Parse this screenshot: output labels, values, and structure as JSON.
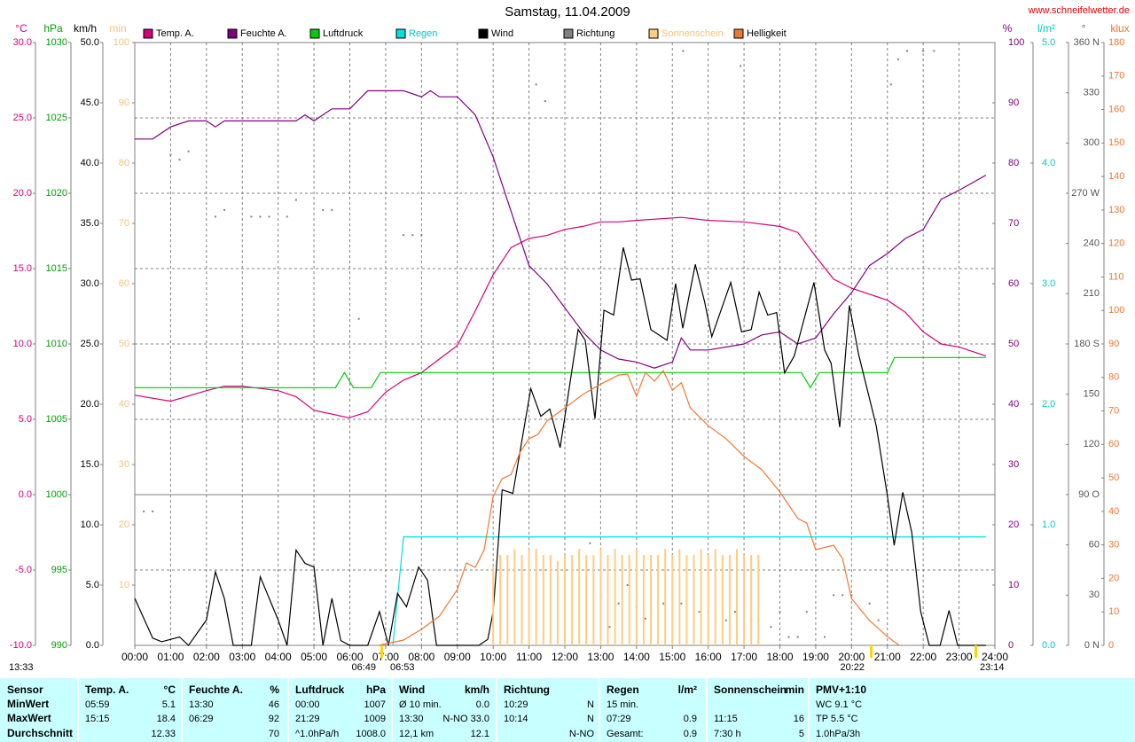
{
  "chart_data": {
    "type": "line",
    "title": "Samstag, 11.04.2009",
    "source": "www.schneifelwetter.de",
    "grid": true,
    "xlim": [
      0,
      24
    ],
    "xticks": [
      {
        "value": 0,
        "label": "00:00"
      },
      {
        "value": 1,
        "label": "01:00"
      },
      {
        "value": 2,
        "label": "02:00"
      },
      {
        "value": 3,
        "label": "03:00"
      },
      {
        "value": 4,
        "label": "04:00"
      },
      {
        "value": 5,
        "label": "05:00"
      },
      {
        "value": 6,
        "label": "06:00"
      },
      {
        "value": 7,
        "label": "07:00"
      },
      {
        "value": 8,
        "label": "08:00"
      },
      {
        "value": 9,
        "label": "09:00"
      },
      {
        "value": 10,
        "label": "10:00"
      },
      {
        "value": 11,
        "label": "11:00"
      },
      {
        "value": 12,
        "label": "12:00"
      },
      {
        "value": 13,
        "label": "13:00"
      },
      {
        "value": 14,
        "label": "14:00"
      },
      {
        "value": 15,
        "label": "15:00"
      },
      {
        "value": 16,
        "label": "16:00"
      },
      {
        "value": 17,
        "label": "17:00"
      },
      {
        "value": 18,
        "label": "18:00"
      },
      {
        "value": 19,
        "label": "19:00"
      },
      {
        "value": 20,
        "label": "20:00"
      },
      {
        "value": 21,
        "label": "21:00"
      },
      {
        "value": 22,
        "label": "22:00"
      },
      {
        "value": 23,
        "label": "23:00"
      },
      {
        "value": 24,
        "label": "24:00"
      }
    ],
    "axes": [
      {
        "label": "°C",
        "color": "#d4007a",
        "ylim": [
          -10,
          30
        ],
        "yticks": [
          {
            "value": -10,
            "label": "-10.0"
          },
          {
            "value": -5,
            "label": "-5.0"
          },
          {
            "value": 0,
            "label": "0.0"
          },
          {
            "value": 5,
            "label": "5.0"
          },
          {
            "value": 10,
            "label": "10.0"
          },
          {
            "value": 15,
            "label": "15.0"
          },
          {
            "value": 20,
            "label": "20.0"
          },
          {
            "value": 25,
            "label": "25.0"
          },
          {
            "value": 30,
            "label": "30.0"
          }
        ]
      },
      {
        "label": "hPa",
        "color": "#00a000",
        "ylim": [
          990,
          1030
        ],
        "yticks": [
          990,
          995,
          1000,
          1005,
          1010,
          1015,
          1020,
          1025,
          1030
        ]
      },
      {
        "label": "km/h",
        "color": "#000000",
        "ylim": [
          0,
          50
        ],
        "yticks": [
          {
            "value": 0,
            "label": "0.0"
          },
          {
            "value": 5,
            "label": "5.0"
          },
          {
            "value": 10,
            "label": "10.0"
          },
          {
            "value": 15,
            "label": "15.0"
          },
          {
            "value": 20,
            "label": "20.0"
          },
          {
            "value": 25,
            "label": "25.0"
          },
          {
            "value": 30,
            "label": "30.0"
          },
          {
            "value": 35,
            "label": "35.0"
          },
          {
            "value": 40,
            "label": "40.0"
          },
          {
            "value": 45,
            "label": "45.0"
          },
          {
            "value": 50,
            "label": "50.0"
          }
        ]
      },
      {
        "label": "min",
        "color": "#f5c27a",
        "ylim": [
          0,
          100
        ],
        "yticks": [
          10,
          20,
          30,
          40,
          50,
          60,
          70,
          80,
          90,
          100
        ]
      },
      {
        "label": "%",
        "color": "#800080",
        "ylim": [
          0,
          100
        ],
        "yticks": [
          0,
          10,
          20,
          30,
          40,
          50,
          60,
          70,
          80,
          90,
          100
        ]
      },
      {
        "label": "l/m²",
        "color": "#00c8c8",
        "ylim": [
          0,
          5
        ],
        "yticks": [
          {
            "value": 0,
            "label": "0.0"
          },
          {
            "value": 1,
            "label": "1.0"
          },
          {
            "value": 2,
            "label": "2.0"
          },
          {
            "value": 3,
            "label": "3.0"
          },
          {
            "value": 4,
            "label": "4.0"
          },
          {
            "value": 5,
            "label": "5.0"
          }
        ]
      },
      {
        "label": "°",
        "color": "#555555",
        "ylim": [
          0,
          360
        ],
        "yticks": [
          {
            "value": 0,
            "label": "0  N"
          },
          30,
          60,
          {
            "value": 90,
            "label": "90 O"
          },
          120,
          150,
          {
            "value": 180,
            "label": "180 S"
          },
          210,
          240,
          {
            "value": 270,
            "label": "270 W"
          },
          300,
          330,
          {
            "value": 360,
            "label": "360 N"
          }
        ]
      },
      {
        "label": "klux",
        "color": "#f07830",
        "ylim": [
          0,
          180
        ],
        "yticks": [
          0,
          10,
          20,
          30,
          40,
          50,
          60,
          70,
          80,
          90,
          100,
          110,
          120,
          130,
          140,
          150,
          160,
          170,
          180
        ]
      }
    ],
    "series": [
      {
        "name": "Temp. A.",
        "color": "#d4007a",
        "axis": 0,
        "x": [
          0,
          1,
          2,
          2.5,
          3,
          4,
          4.5,
          5,
          5.98,
          6.5,
          7,
          7.5,
          8,
          8.5,
          9,
          9.5,
          10,
          10.5,
          11,
          11.5,
          12,
          12.5,
          13,
          13.5,
          14,
          15.25,
          16,
          17,
          18,
          18.5,
          19,
          19.5,
          20,
          21,
          21.5,
          22,
          22.5,
          23,
          23.75
        ],
        "values": [
          6.6,
          6.2,
          6.9,
          7.2,
          7.2,
          6.9,
          6.5,
          5.6,
          5.1,
          5.5,
          6.8,
          7.6,
          8.1,
          9.0,
          9.9,
          12.2,
          14.6,
          16.4,
          17.0,
          17.2,
          17.6,
          17.8,
          18.1,
          18.1,
          18.2,
          18.4,
          18.2,
          18.1,
          17.8,
          17.4,
          15.8,
          14.3,
          13.7,
          12.9,
          12.1,
          10.8,
          10.0,
          9.8,
          9.2
        ]
      },
      {
        "name": "Feuchte A.",
        "color": "#800080",
        "axis": 4,
        "x": [
          0,
          0.5,
          1,
          1.5,
          2,
          2.25,
          2.5,
          3,
          4,
          4.5,
          4.75,
          5,
          5.5,
          6,
          6.5,
          7,
          7.5,
          8,
          8.25,
          8.5,
          9,
          9.5,
          10,
          10.5,
          11,
          11.5,
          12,
          12.5,
          13,
          13.5,
          14,
          14.5,
          15,
          15.25,
          15.5,
          16,
          17,
          17.5,
          18,
          18.5,
          19,
          19.5,
          20,
          20.5,
          21,
          21.5,
          22,
          22.5,
          23,
          23.75
        ],
        "values": [
          84,
          84,
          86,
          87,
          87,
          86,
          87,
          87,
          87,
          87,
          88,
          87,
          89,
          89,
          92,
          92,
          92,
          91,
          92,
          91,
          91,
          88,
          81,
          72,
          63,
          60,
          56,
          52,
          49,
          47.5,
          47,
          46,
          47,
          51,
          49,
          49,
          50,
          51.5,
          52,
          50,
          51,
          55,
          58.5,
          63,
          65,
          67.5,
          69,
          74,
          75.5,
          78
        ]
      },
      {
        "name": "Luftdruck",
        "color": "#00cc00",
        "axis": 1,
        "x": [
          0,
          5.6,
          5.85,
          6.1,
          6.6,
          6.85,
          18.6,
          18.85,
          19.1,
          21.0,
          21.2,
          23.75
        ],
        "values": [
          1007.1,
          1007.1,
          1008.1,
          1007.1,
          1007.1,
          1008.1,
          1008.1,
          1007.1,
          1008.1,
          1008.1,
          1009.1,
          1009.1
        ]
      },
      {
        "name": "Regen",
        "color": "#00e0e0",
        "axis": 5,
        "x": [
          7.2,
          7.5,
          23.75
        ],
        "values": [
          0,
          0.9,
          0.9
        ]
      },
      {
        "name": "Wind",
        "color": "#000000",
        "axis": 2,
        "x": [
          0,
          0.5,
          0.75,
          1.25,
          1.5,
          2,
          2.25,
          2.5,
          2.75,
          3.25,
          3.5,
          4,
          4.25,
          4.5,
          4.75,
          5,
          5.25,
          5.5,
          5.75,
          6,
          6.5,
          6.83,
          7.08,
          7.33,
          7.58,
          7.92,
          8.17,
          8.42,
          9.6,
          9.85,
          10,
          10.25,
          10.55,
          11.05,
          11.33,
          11.58,
          11.87,
          12.37,
          12.57,
          12.84,
          13.09,
          13.36,
          13.63,
          13.86,
          14.1,
          14.4,
          14.85,
          15.09,
          15.29,
          15.64,
          15.9,
          16.1,
          16.63,
          16.93,
          17.2,
          17.42,
          17.66,
          17.91,
          18.13,
          18.4,
          18.95,
          19.25,
          19.43,
          19.67,
          19.94,
          20.2,
          20.69,
          21.0,
          21.19,
          21.43,
          21.68,
          21.93,
          22.17,
          22.47,
          22.72,
          22.96,
          23.75
        ],
        "values": [
          3.9,
          0.6,
          0.3,
          0.7,
          0,
          2.1,
          6.1,
          3.9,
          0,
          0,
          5.7,
          2.1,
          0,
          7.9,
          6.8,
          6.5,
          0,
          3.9,
          0.4,
          0,
          0,
          2.8,
          0,
          4.3,
          3.2,
          6.5,
          5.4,
          0,
          0,
          0.5,
          2.8,
          12.9,
          12.6,
          21.3,
          19.0,
          19.6,
          16.4,
          26.2,
          25.3,
          18.8,
          27.8,
          27.4,
          33.0,
          30.3,
          30.4,
          26.2,
          25.3,
          30.0,
          26.3,
          31.6,
          28.5,
          25.6,
          30.1,
          26.0,
          26.2,
          29.3,
          27.4,
          27.6,
          22.6,
          24.0,
          30.1,
          24.5,
          23.4,
          18.1,
          28.2,
          24.1,
          18.2,
          12.4,
          8.3,
          12.7,
          9.4,
          2.8,
          0,
          0,
          2.9,
          0,
          0
        ]
      },
      {
        "name": "Richtung",
        "color": "#808080",
        "axis": 6,
        "type": "scatter",
        "x": [
          0.25,
          0.5,
          1,
          1.25,
          1.5,
          2.25,
          2.5,
          3.25,
          3.5,
          3.75,
          4.25,
          4.5,
          5.25,
          5.5,
          6.25,
          7.5,
          7.75,
          8,
          11.2,
          11.45,
          12.7,
          13,
          13.25,
          13.5,
          13.75,
          14,
          14.25,
          14.75,
          15.25,
          15.3,
          15.75,
          16,
          16.5,
          16.75,
          16.9,
          17.2,
          17.75,
          18,
          18.25,
          18.5,
          18.75,
          19.25,
          19.5,
          19.75,
          20,
          20.5,
          20.75,
          21.1,
          21.3,
          21.55,
          22,
          22.3
        ],
        "values": [
          80,
          80,
          293,
          290,
          295,
          256,
          260,
          256,
          256,
          256,
          256,
          266,
          260,
          260,
          195,
          245,
          245,
          245,
          335,
          325,
          61,
          30,
          11,
          25,
          36,
          23,
          16,
          25,
          25,
          355,
          20,
          20,
          15,
          20,
          346,
          15,
          11,
          20,
          5,
          5,
          20,
          5,
          30,
          30,
          30,
          25,
          15,
          335,
          350,
          355,
          355,
          355
        ]
      },
      {
        "name": "Sonnenschein",
        "color": "#ffcc80",
        "axis": 3,
        "type": "bar",
        "x": [
          10,
          10.2,
          10.4,
          10.6,
          10.8,
          11,
          11.2,
          11.4,
          11.6,
          11.8,
          12,
          12.2,
          12.4,
          12.6,
          12.8,
          13,
          13.2,
          13.4,
          13.6,
          13.8,
          14,
          14.2,
          14.4,
          14.6,
          14.8,
          15,
          15.2,
          15.4,
          15.6,
          15.8,
          16,
          16.2,
          16.4,
          16.6,
          16.8,
          17,
          17.2,
          17.4
        ],
        "values": [
          13,
          15,
          15,
          16,
          15,
          16,
          16,
          15,
          15,
          14,
          15,
          15,
          16,
          15,
          15,
          16,
          15,
          16,
          15,
          15,
          16,
          15,
          15,
          15,
          16,
          15,
          16,
          15,
          15,
          16,
          15,
          16,
          15,
          15,
          16,
          15,
          15,
          15
        ]
      },
      {
        "name": "Helligkeit",
        "color": "#f07830",
        "axis": 7,
        "x": [
          6.8,
          7.5,
          8,
          8.5,
          9,
          9.25,
          9.5,
          9.75,
          10,
          10.25,
          10.5,
          10.75,
          11,
          11.25,
          11.5,
          12,
          12.5,
          13,
          13.5,
          13.75,
          14,
          14.25,
          14.5,
          14.75,
          15,
          15.25,
          15.5,
          16,
          16.5,
          17,
          17.5,
          18,
          18.5,
          18.75,
          19,
          19.5,
          19.75,
          20,
          20.5,
          21,
          21.33
        ],
        "values": [
          0,
          1.6,
          4.8,
          8.7,
          16.7,
          24.6,
          23.3,
          28.6,
          44.5,
          49.8,
          51,
          57.7,
          61.7,
          63,
          67,
          70.9,
          74.9,
          78,
          80.7,
          81,
          74.4,
          81.5,
          78.9,
          82,
          76.2,
          78.4,
          70.9,
          65.6,
          61.7,
          56.4,
          52.4,
          45.8,
          37.9,
          36.5,
          28.6,
          29.9,
          25.9,
          14,
          7.4,
          2.6,
          0
        ]
      }
    ],
    "annotations": [
      "13:33",
      "06:49",
      "06:53",
      "20:22",
      "23:14"
    ]
  },
  "table": {
    "header": "Sensor",
    "row_labels": [
      "MinWert",
      "MaxWert",
      "Durchschnitt"
    ],
    "groups": [
      {
        "title": "Temp. A.",
        "unit": "°C",
        "rows": [
          [
            "05:59",
            "5.1"
          ],
          [
            "15:15",
            "18.4"
          ],
          [
            null,
            "12.33"
          ]
        ]
      },
      {
        "title": "Feuchte A.",
        "unit": "%",
        "rows": [
          [
            "13:30",
            "46"
          ],
          [
            "06:29",
            "92"
          ],
          [
            null,
            "70"
          ]
        ]
      },
      {
        "title": "Luftdruck",
        "unit": "hPa",
        "rows": [
          [
            "00:00",
            "1007"
          ],
          [
            "21:29",
            "1009"
          ],
          [
            "^1.0hPa/h",
            "1008.0"
          ]
        ]
      },
      {
        "title": "Wind",
        "unit": "km/h",
        "rows": [
          [
            "Ø 10 min.",
            "0.0"
          ],
          [
            "13:30",
            "N-NO 33.0"
          ],
          [
            "12,1 km",
            "12.1"
          ]
        ]
      },
      {
        "title": "Richtung",
        "rows": [
          [
            "10:29",
            "N"
          ],
          [
            "10:14",
            "N"
          ],
          [
            null,
            "N-NO"
          ]
        ]
      },
      {
        "title": "Regen",
        "unit": "l/m²",
        "rows": [
          [
            "15 min.",
            null
          ],
          [
            "07:29",
            "0.9"
          ],
          [
            "Gesamt:",
            "0.9"
          ]
        ]
      },
      {
        "title": "Sonnenschein",
        "unit": "min",
        "rows": [
          [
            null,
            null
          ],
          [
            "11:15",
            "16"
          ],
          [
            "7:30 h",
            "5"
          ]
        ]
      },
      {
        "title": "PMV+1:10",
        "rows": [
          [
            "WC 9.1 °C",
            null
          ],
          [
            "TP 5.5 °C",
            null
          ],
          [
            "1.0hPa/3h",
            null
          ]
        ]
      }
    ]
  }
}
